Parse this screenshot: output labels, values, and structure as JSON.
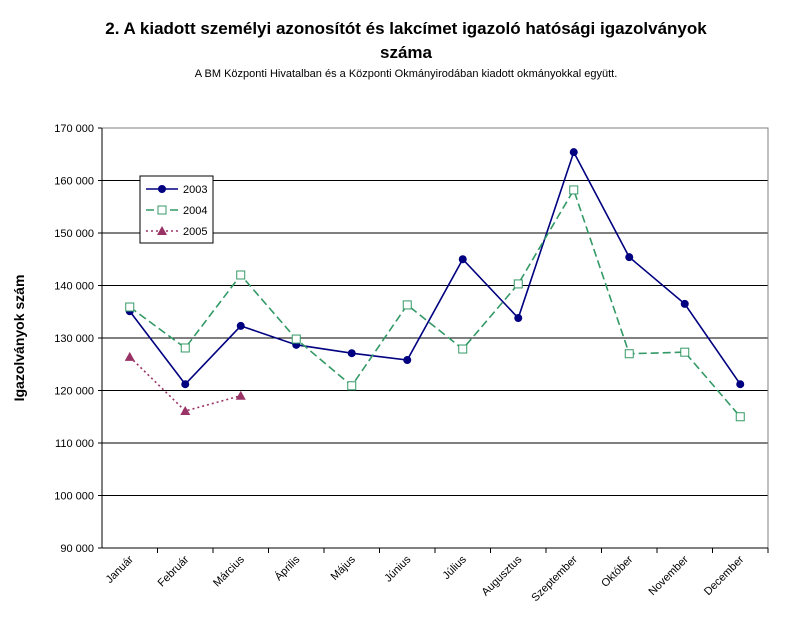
{
  "chart_data": {
    "type": "line",
    "title": [
      "2. A kiadott személyi azonosítót és lakcímet igazoló hatósági igazolványok",
      "száma"
    ],
    "subtitle": "A BM Központi Hivatalban és a Központi Okmányirodában kiadott okmányokkal együtt.",
    "y_label": "Igazolványok szám",
    "categories": [
      "Január",
      "Február",
      "Március",
      "Április",
      "Május",
      "Június",
      "Július",
      "Augusztus",
      "Szeptember",
      "Október",
      "November",
      "December"
    ],
    "series": [
      {
        "name": "2003",
        "color": "#000080",
        "values": [
          135100,
          121200,
          132300,
          128700,
          127100,
          125800,
          145000,
          133800,
          165400,
          145400,
          136500,
          121200
        ]
      },
      {
        "name": "2004",
        "color": "#339966",
        "values": [
          135900,
          128100,
          142000,
          129800,
          120900,
          136300,
          127900,
          140300,
          158200,
          127000,
          127300,
          115000
        ]
      },
      {
        "name": "2005",
        "color": "#993366",
        "values": [
          126400,
          116100,
          119000,
          null,
          null,
          null,
          null,
          null,
          null,
          null,
          null,
          null
        ]
      }
    ],
    "ylim": [
      90000,
      170000
    ],
    "yticks": [
      {
        "value": 90000,
        "label": "90 000"
      },
      {
        "value": 100000,
        "label": "100 000"
      },
      {
        "value": 110000,
        "label": "110 000"
      },
      {
        "value": 120000,
        "label": "120 000"
      },
      {
        "value": 130000,
        "label": "130 000"
      },
      {
        "value": 140000,
        "label": "140 000"
      },
      {
        "value": 150000,
        "label": "150 000"
      },
      {
        "value": 160000,
        "label": "160 000"
      },
      {
        "value": 170000,
        "label": "170 000"
      }
    ],
    "grid": true,
    "legend": "upper left"
  }
}
